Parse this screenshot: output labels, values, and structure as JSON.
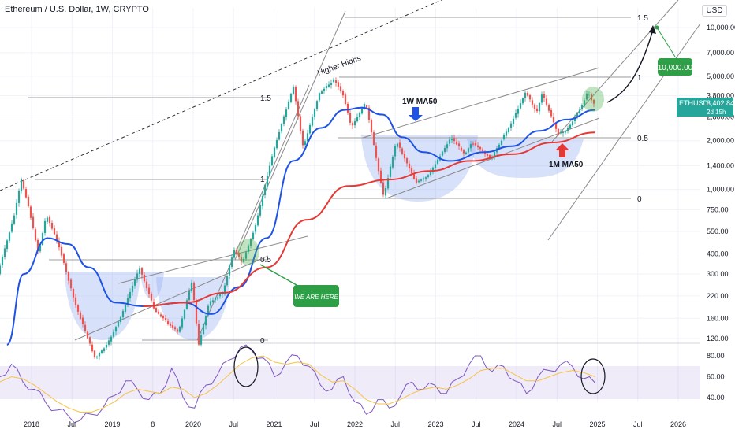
{
  "header": {
    "title": "Ethereum / U.S. Dollar, 1W, CRYPTO",
    "currency": "USD"
  },
  "price_tag": {
    "symbol": "ETHUSD",
    "value": "3,402.84",
    "countdown": "2d 15h"
  },
  "colors": {
    "ma_1w": "#1e53e5",
    "ma_1m": "#e53935",
    "rsi": "#7e57c2",
    "rsi_signal": "#f6c343",
    "up": "#26a69a",
    "down": "#ef5350",
    "highlight_green": "#4caf50",
    "bubble": "#2e9e47"
  },
  "chart_data": {
    "type": "line",
    "scale": "log",
    "price_axis_ticks": [
      "10,000.00",
      "7,000.00",
      "5,000.00",
      "3,800.00",
      "2,800.00",
      "2,000.00",
      "1,400.00",
      "1,000.00",
      "750.00",
      "550.00",
      "400.00",
      "300.00",
      "220.00",
      "160.00",
      "120.00"
    ],
    "rsi_axis_ticks": [
      "80.00",
      "60.00",
      "40.00"
    ],
    "time_axis_labels": [
      "2018",
      "Jul",
      "2019",
      "8",
      "2020",
      "Jul",
      "2021",
      "Jul",
      "2022",
      "Jul",
      "2023",
      "Jul",
      "2024",
      "Jul",
      "2025",
      "Jul",
      "2026"
    ],
    "price_path": [
      {
        "d": "2017-10-01",
        "y": 300
      },
      {
        "d": "2017-12-15",
        "y": 700
      },
      {
        "d": "2018-01-14",
        "y": 1150
      },
      {
        "d": "2018-02-10",
        "y": 850
      },
      {
        "d": "2018-04-01",
        "y": 400
      },
      {
        "d": "2018-05-06",
        "y": 700
      },
      {
        "d": "2018-07-01",
        "y": 450
      },
      {
        "d": "2018-09-10",
        "y": 200
      },
      {
        "d": "2018-12-10",
        "y": 90
      },
      {
        "d": "2019-02-01",
        "y": 110
      },
      {
        "d": "2019-04-01",
        "y": 160
      },
      {
        "d": "2019-06-25",
        "y": 330
      },
      {
        "d": "2019-09-01",
        "y": 180
      },
      {
        "d": "2019-12-15",
        "y": 130
      },
      {
        "d": "2020-02-15",
        "y": 270
      },
      {
        "d": "2020-03-15",
        "y": 110
      },
      {
        "d": "2020-05-01",
        "y": 200
      },
      {
        "d": "2020-07-01",
        "y": 230
      },
      {
        "d": "2020-08-20",
        "y": 430
      },
      {
        "d": "2020-09-25",
        "y": 350
      },
      {
        "d": "2020-11-25",
        "y": 600
      },
      {
        "d": "2021-01-20",
        "y": 1300
      },
      {
        "d": "2021-02-20",
        "y": 1900
      },
      {
        "d": "2021-05-12",
        "y": 4300
      },
      {
        "d": "2021-06-25",
        "y": 1800
      },
      {
        "d": "2021-09-03",
        "y": 3900
      },
      {
        "d": "2021-11-10",
        "y": 4800
      },
      {
        "d": "2021-12-20",
        "y": 3800
      },
      {
        "d": "2022-01-25",
        "y": 2400
      },
      {
        "d": "2022-03-30",
        "y": 3450
      },
      {
        "d": "2022-06-18",
        "y": 900
      },
      {
        "d": "2022-08-14",
        "y": 2000
      },
      {
        "d": "2022-11-10",
        "y": 1100
      },
      {
        "d": "2022-12-31",
        "y": 1200
      },
      {
        "d": "2023-04-15",
        "y": 2100
      },
      {
        "d": "2023-06-15",
        "y": 1650
      },
      {
        "d": "2023-07-15",
        "y": 1950
      },
      {
        "d": "2023-10-10",
        "y": 1550
      },
      {
        "d": "2024-01-10",
        "y": 2600
      },
      {
        "d": "2024-03-12",
        "y": 4000
      },
      {
        "d": "2024-05-01",
        "y": 3000
      },
      {
        "d": "2024-05-25",
        "y": 3900
      },
      {
        "d": "2024-08-05",
        "y": 2200
      },
      {
        "d": "2024-09-10",
        "y": 2300
      },
      {
        "d": "2024-11-15",
        "y": 3200
      },
      {
        "d": "2024-12-16",
        "y": 4100
      },
      {
        "d": "2025-01-06",
        "y": 3400
      }
    ],
    "series": [
      {
        "name": "1W MA50",
        "color": "#1e53e5",
        "points": [
          {
            "d": "2017-11-01",
            "y": 110
          },
          {
            "d": "2018-01-15",
            "y": 300
          },
          {
            "d": "2018-05-01",
            "y": 500
          },
          {
            "d": "2018-08-01",
            "y": 460
          },
          {
            "d": "2018-11-01",
            "y": 330
          },
          {
            "d": "2019-03-01",
            "y": 200
          },
          {
            "d": "2019-07-01",
            "y": 190
          },
          {
            "d": "2020-01-01",
            "y": 200
          },
          {
            "d": "2020-05-01",
            "y": 170
          },
          {
            "d": "2020-09-01",
            "y": 250
          },
          {
            "d": "2021-01-01",
            "y": 500
          },
          {
            "d": "2021-05-01",
            "y": 1500
          },
          {
            "d": "2021-09-01",
            "y": 2400
          },
          {
            "d": "2021-12-15",
            "y": 3100
          },
          {
            "d": "2022-03-01",
            "y": 3200
          },
          {
            "d": "2022-06-01",
            "y": 2900
          },
          {
            "d": "2022-09-01",
            "y": 2100
          },
          {
            "d": "2022-12-01",
            "y": 1700
          },
          {
            "d": "2023-04-01",
            "y": 1500
          },
          {
            "d": "2023-09-01",
            "y": 1700
          },
          {
            "d": "2024-01-01",
            "y": 1850
          },
          {
            "d": "2024-05-01",
            "y": 2300
          },
          {
            "d": "2024-09-01",
            "y": 2700
          },
          {
            "d": "2025-01-06",
            "y": 3100
          }
        ]
      },
      {
        "name": "1M MA50",
        "color": "#e53935",
        "points": [
          {
            "d": "2019-07-01",
            "y": 190
          },
          {
            "d": "2020-01-01",
            "y": 200
          },
          {
            "d": "2020-07-01",
            "y": 230
          },
          {
            "d": "2021-01-01",
            "y": 330
          },
          {
            "d": "2021-07-01",
            "y": 650
          },
          {
            "d": "2022-01-01",
            "y": 1050
          },
          {
            "d": "2022-07-01",
            "y": 1150
          },
          {
            "d": "2023-01-01",
            "y": 1300
          },
          {
            "d": "2023-07-01",
            "y": 1500
          },
          {
            "d": "2024-01-01",
            "y": 1650
          },
          {
            "d": "2024-07-01",
            "y": 1950
          },
          {
            "d": "2025-01-06",
            "y": 2250
          }
        ]
      }
    ],
    "rsi": {
      "values": [
        60,
        72,
        55,
        48,
        35,
        28,
        22,
        18,
        24,
        30,
        42,
        56,
        48,
        38,
        44,
        68,
        40,
        30,
        52,
        62,
        76,
        88,
        85,
        78,
        60,
        74,
        80,
        70,
        52,
        48,
        60,
        36,
        24,
        38,
        30,
        42,
        55,
        48,
        52,
        44,
        58,
        72,
        80,
        65,
        70,
        56,
        44,
        60,
        66,
        72,
        70,
        58,
        54
      ],
      "signal": [
        55,
        60,
        58,
        52,
        44,
        36,
        30,
        26,
        26,
        30,
        36,
        44,
        48,
        46,
        44,
        50,
        48,
        40,
        44,
        52,
        62,
        72,
        78,
        80,
        74,
        72,
        74,
        72,
        62,
        55,
        56,
        48,
        38,
        34,
        34,
        38,
        44,
        48,
        50,
        48,
        52,
        58,
        66,
        68,
        68,
        62,
        56,
        56,
        60,
        64,
        66,
        64,
        60
      ],
      "band": [
        40,
        70
      ]
    }
  },
  "annotations": {
    "higher_highs": "Higher Highs",
    "ma1w_label": "1W MA50",
    "ma1m_label": "1M MA50",
    "we_are_here": "WE ARE HERE",
    "target": "10,000.00",
    "fib_left": [
      "1.5",
      "1",
      "0.5",
      "0"
    ],
    "fib_right": [
      "1.5",
      "1",
      "0.5",
      "0"
    ]
  }
}
